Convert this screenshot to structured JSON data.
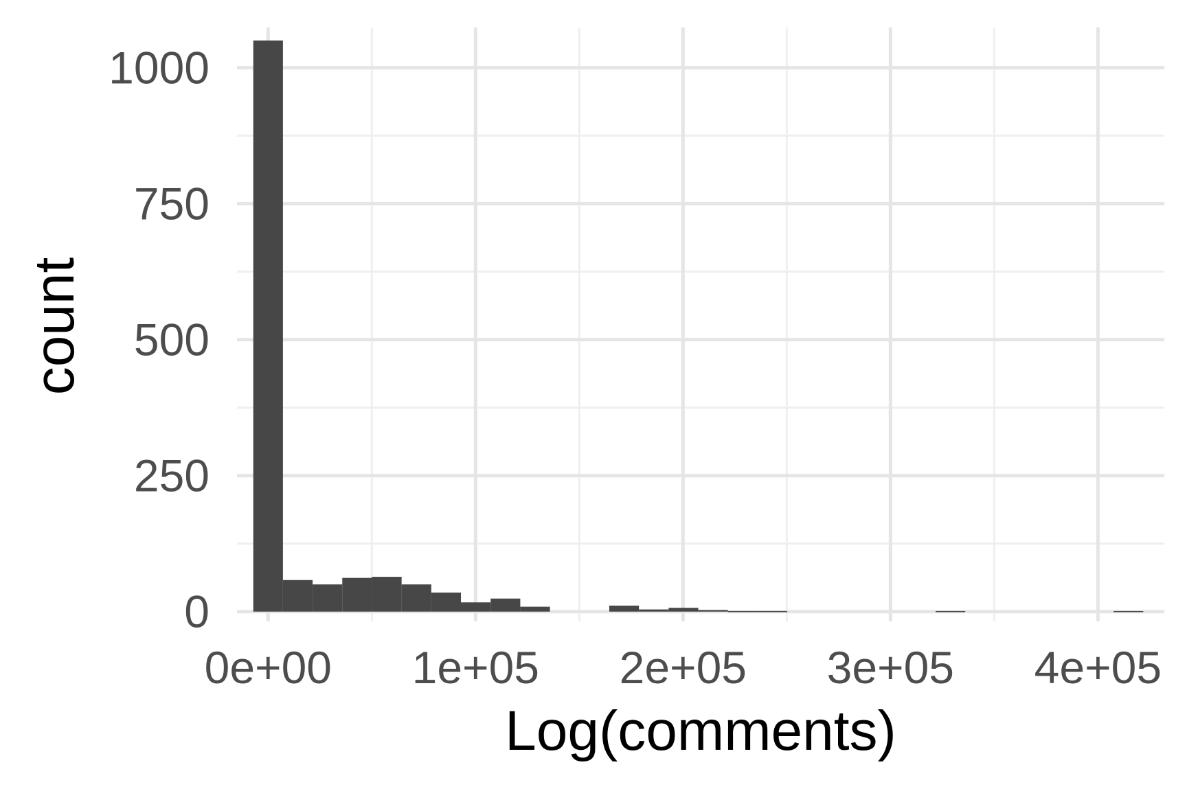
{
  "chart_data": {
    "type": "bar",
    "title": "",
    "xlabel": "Log(comments)",
    "ylabel": "count",
    "xlim": [
      -15000,
      432000
    ],
    "ylim": [
      -18,
      1074
    ],
    "x_ticks": [
      0,
      100000,
      200000,
      300000,
      400000
    ],
    "x_tick_labels": [
      "0e+00",
      "1e+05",
      "2e+05",
      "3e+05",
      "4e+05"
    ],
    "x_minor_ticks": [
      50000,
      150000,
      250000,
      350000
    ],
    "y_ticks": [
      0,
      250,
      500,
      750,
      1000
    ],
    "y_tick_labels": [
      "0",
      "250",
      "500",
      "750",
      "1000"
    ],
    "y_minor_ticks": [
      125,
      375,
      625,
      875
    ],
    "grid": true,
    "bin_width": 14300,
    "bin_centers": [
      0,
      14300,
      28600,
      42900,
      57200,
      71500,
      85800,
      100100,
      114400,
      128700,
      143000,
      157300,
      171600,
      185900,
      200200,
      214500,
      228800,
      243100,
      257400,
      271700,
      286000,
      300300,
      314600,
      328900,
      343200,
      357500,
      371800,
      386100,
      400400,
      414700
    ],
    "values": [
      1050,
      58,
      50,
      62,
      64,
      50,
      35,
      17,
      24,
      9,
      0,
      0,
      11,
      4,
      7,
      3,
      1,
      1,
      0,
      0,
      0,
      0,
      0,
      1,
      0,
      0,
      0,
      0,
      0,
      1
    ],
    "colors": {
      "bar": "#474747",
      "grid_major": "#e5e5e5",
      "grid_minor": "#efefef",
      "tick_text": "#4d4d4d",
      "title_text": "#000000"
    }
  }
}
